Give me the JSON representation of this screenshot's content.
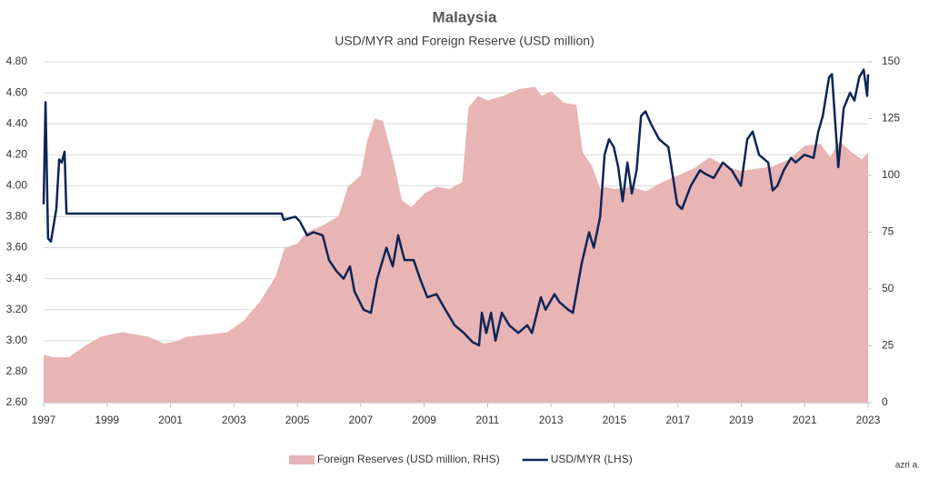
{
  "chart_data": {
    "type": "line-area",
    "title": "Malaysia",
    "subtitle": "USD/MYR and Foreign Reserve (USD million)",
    "credit": "azri a.",
    "xlim": [
      1997,
      2023
    ],
    "xticks": [
      1997,
      1999,
      2001,
      2003,
      2005,
      2007,
      2009,
      2011,
      2013,
      2015,
      2017,
      2019,
      2021,
      2023
    ],
    "ylim": [
      2.6,
      4.8
    ],
    "yticks": [
      {
        "value": 2.6,
        "label": "2.60"
      },
      {
        "value": 2.8,
        "label": "2.80"
      },
      {
        "value": 3.0,
        "label": "3.00"
      },
      {
        "value": 3.2,
        "label": "3.20"
      },
      {
        "value": 3.4,
        "label": "3.40"
      },
      {
        "value": 3.6,
        "label": "3.60"
      },
      {
        "value": 3.8,
        "label": "3.80"
      },
      {
        "value": 4.0,
        "label": "4.00"
      },
      {
        "value": 4.2,
        "label": "4.20"
      },
      {
        "value": 4.4,
        "label": "4.40"
      },
      {
        "value": 4.6,
        "label": "4.60"
      },
      {
        "value": 4.8,
        "label": "4.80"
      }
    ],
    "y2lim": [
      0,
      150
    ],
    "y2ticks": [
      0,
      25,
      50,
      75,
      100,
      125,
      150
    ],
    "grid": true,
    "legend": "bottom",
    "series": [
      {
        "name": "Foreign Reserves (USD million, RHS)",
        "kind": "area",
        "axis": "y2",
        "color": "#e8b4b4",
        "x": [
          1997.0,
          1997.3,
          1997.8,
          1998.3,
          1998.8,
          1999.1,
          1999.5,
          1999.9,
          2000.3,
          2000.8,
          2001.2,
          2001.5,
          2002.2,
          2002.8,
          2003.3,
          2003.8,
          2004.3,
          2004.6,
          2005.0,
          2005.3,
          2005.8,
          2006.3,
          2006.6,
          2007.0,
          2007.2,
          2007.44,
          2007.7,
          2008.0,
          2008.3,
          2008.6,
          2009.0,
          2009.4,
          2009.8,
          2010.2,
          2010.4,
          2010.7,
          2011.0,
          2011.5,
          2012.0,
          2012.5,
          2012.7,
          2013.0,
          2013.4,
          2013.8,
          2014.0,
          2014.3,
          2014.55,
          2014.7,
          2015.0,
          2015.5,
          2016.0,
          2016.5,
          2017.0,
          2017.5,
          2018.0,
          2018.5,
          2019.0,
          2019.5,
          2020.0,
          2020.5,
          2021.0,
          2021.5,
          2021.8,
          2022.1,
          2022.5,
          2022.8,
          2023.0
        ],
        "values": [
          21,
          20,
          20,
          25,
          29,
          30,
          31,
          30,
          29,
          26,
          27,
          29,
          30,
          31,
          36,
          44,
          55,
          68,
          70,
          75,
          78,
          82,
          95,
          100,
          115,
          125,
          124,
          108,
          89,
          86,
          92,
          95,
          94,
          97,
          130,
          135,
          133,
          135,
          138,
          139,
          135,
          137,
          132,
          131,
          110,
          104,
          94,
          95,
          94,
          95,
          93,
          97,
          100,
          103,
          108,
          104,
          102,
          103,
          104,
          107,
          113,
          114,
          108,
          115,
          110,
          107,
          110
        ]
      },
      {
        "name": "USD/MYR (LHS)",
        "kind": "line",
        "axis": "y",
        "color": "#0d2557",
        "x": [
          1997.0,
          1997.06,
          1997.14,
          1997.23,
          1997.4,
          1997.49,
          1997.57,
          1997.66,
          1997.72,
          2004.51,
          2004.57,
          2004.94,
          2005.08,
          2005.31,
          2005.51,
          2005.8,
          2006.0,
          2006.23,
          2006.46,
          2006.66,
          2006.8,
          2007.09,
          2007.32,
          2007.52,
          2007.81,
          2008.01,
          2008.18,
          2008.38,
          2008.67,
          2008.87,
          2009.1,
          2009.39,
          2009.67,
          2009.96,
          2010.25,
          2010.53,
          2010.73,
          2010.82,
          2010.96,
          2011.11,
          2011.25,
          2011.45,
          2011.68,
          2011.97,
          2012.25,
          2012.4,
          2012.68,
          2012.83,
          2013.11,
          2013.26,
          2013.54,
          2013.69,
          2013.97,
          2014.2,
          2014.35,
          2014.55,
          2014.69,
          2014.83,
          2014.98,
          2015.12,
          2015.26,
          2015.41,
          2015.55,
          2015.7,
          2015.84,
          2015.98,
          2016.15,
          2016.41,
          2016.7,
          2016.98,
          2017.13,
          2017.41,
          2017.7,
          2017.84,
          2018.13,
          2018.42,
          2018.7,
          2018.99,
          2019.19,
          2019.36,
          2019.56,
          2019.85,
          2019.99,
          2020.14,
          2020.34,
          2020.57,
          2020.71,
          2020.99,
          2021.28,
          2021.43,
          2021.57,
          2021.77,
          2021.86,
          2022.06,
          2022.23,
          2022.43,
          2022.57,
          2022.72,
          2022.86,
          2022.97,
          2023.0
        ],
        "values": [
          3.88,
          4.54,
          3.66,
          3.64,
          3.85,
          4.17,
          4.15,
          4.22,
          3.82,
          3.82,
          3.78,
          3.8,
          3.77,
          3.68,
          3.7,
          3.68,
          3.52,
          3.45,
          3.4,
          3.48,
          3.32,
          3.2,
          3.18,
          3.4,
          3.6,
          3.48,
          3.68,
          3.52,
          3.52,
          3.4,
          3.28,
          3.3,
          3.2,
          3.1,
          3.05,
          2.99,
          2.97,
          3.18,
          3.05,
          3.18,
          3.0,
          3.18,
          3.1,
          3.05,
          3.1,
          3.05,
          3.28,
          3.2,
          3.3,
          3.25,
          3.2,
          3.18,
          3.5,
          3.7,
          3.6,
          3.8,
          4.2,
          4.3,
          4.25,
          4.12,
          3.9,
          4.15,
          3.95,
          4.1,
          4.45,
          4.48,
          4.4,
          4.3,
          4.25,
          3.88,
          3.85,
          4.0,
          4.1,
          4.08,
          4.05,
          4.15,
          4.1,
          4.0,
          4.3,
          4.35,
          4.2,
          4.15,
          3.97,
          4.0,
          4.1,
          4.18,
          4.15,
          4.2,
          4.18,
          4.35,
          4.45,
          4.7,
          4.72,
          4.12,
          4.5,
          4.6,
          4.55,
          4.7,
          4.75,
          4.58,
          4.72
        ]
      }
    ]
  }
}
